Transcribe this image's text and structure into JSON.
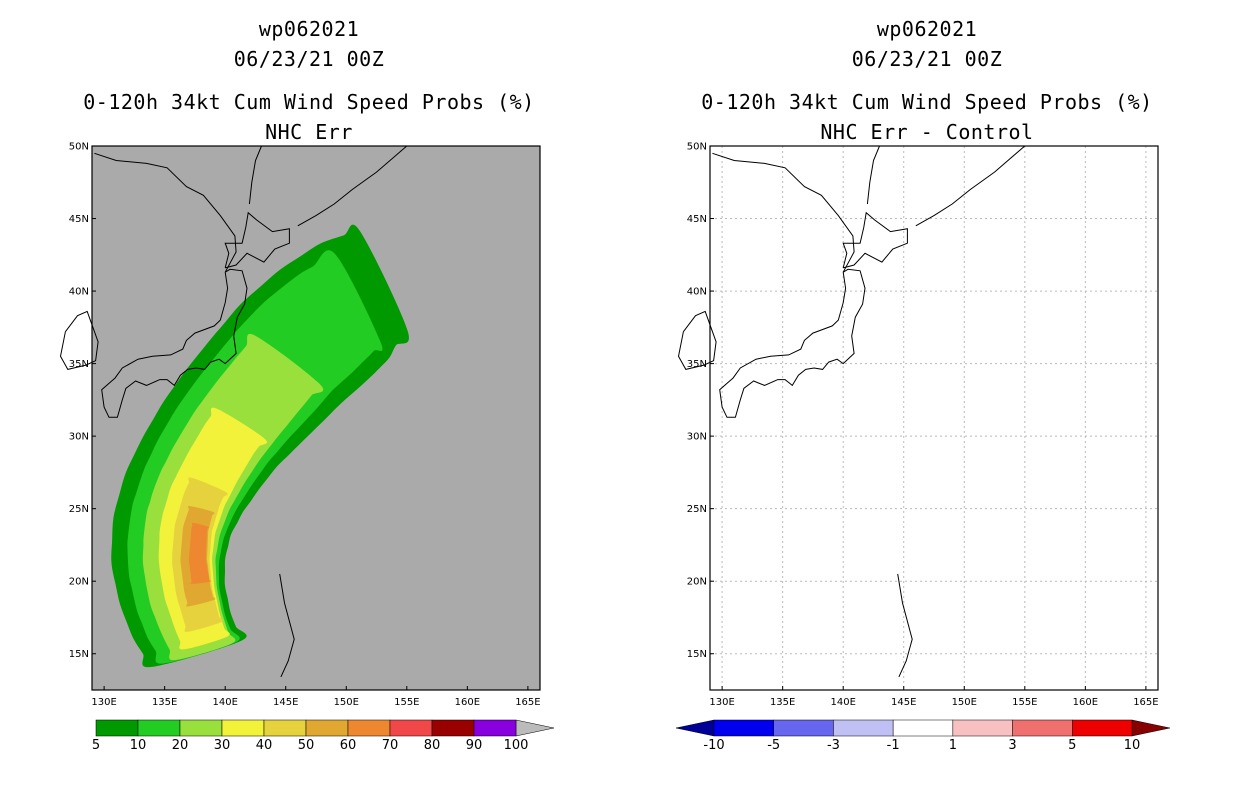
{
  "chart_data": [
    {
      "type": "heatmap",
      "id": "wp062021",
      "title_line1": "wp062021",
      "title_line2": "06/23/21 00Z",
      "title_line3": "0-120h 34kt Cum Wind Speed Probs (%)",
      "title_line4": "NHC Err",
      "x_ticks": [
        "130E",
        "135E",
        "140E",
        "145E",
        "150E",
        "155E",
        "160E",
        "165E"
      ],
      "y_ticks": [
        "15N",
        "20N",
        "25N",
        "30N",
        "35N",
        "40N",
        "45N",
        "50N"
      ],
      "xlim": [
        129,
        166
      ],
      "ylim": [
        12.5,
        50
      ],
      "background": "#aaaaaa",
      "grid": false,
      "colorbar": {
        "levels": [
          "5",
          "10",
          "20",
          "30",
          "40",
          "50",
          "60",
          "70",
          "80",
          "90",
          "100"
        ],
        "colors": [
          "#009900",
          "#22cc22",
          "#99e03c",
          "#f2f23a",
          "#e6d23c",
          "#e0a830",
          "#ee8830",
          "#f04848",
          "#990000",
          "#8800dd"
        ],
        "end_color": "#bbbbbb"
      },
      "probability_contours": [
        {
          "level": "5",
          "color": "#009900"
        },
        {
          "level": "10",
          "color": "#22cc22"
        },
        {
          "level": "20",
          "color": "#99e03c"
        },
        {
          "level": "30",
          "color": "#f2f23a"
        },
        {
          "level": "40",
          "color": "#e6d23c"
        },
        {
          "level": "50",
          "color": "#e0a830"
        },
        {
          "level": "60",
          "color": "#ee8830"
        }
      ]
    },
    {
      "type": "heatmap",
      "id": "wp062021",
      "title_line1": "wp062021",
      "title_line2": "06/23/21 00Z",
      "title_line3": "0-120h 34kt Cum Wind Speed Probs (%)",
      "title_line4": "NHC Err - Control",
      "x_ticks": [
        "130E",
        "135E",
        "140E",
        "145E",
        "150E",
        "155E",
        "160E",
        "165E"
      ],
      "y_ticks": [
        "15N",
        "20N",
        "25N",
        "30N",
        "35N",
        "40N",
        "45N",
        "50N"
      ],
      "xlim": [
        129,
        166
      ],
      "ylim": [
        12.5,
        50
      ],
      "background": "#ffffff",
      "grid": true,
      "colorbar": {
        "levels": [
          "-10",
          "-5",
          "-3",
          "-1",
          "1",
          "3",
          "5",
          "10"
        ],
        "colors": [
          "#0000ee",
          "#6666ee",
          "#c0c0f4",
          "#ffffff",
          "#f8c0c0",
          "#f07070",
          "#ee0000"
        ],
        "start_color": "#000099",
        "end_color": "#880000"
      }
    }
  ]
}
